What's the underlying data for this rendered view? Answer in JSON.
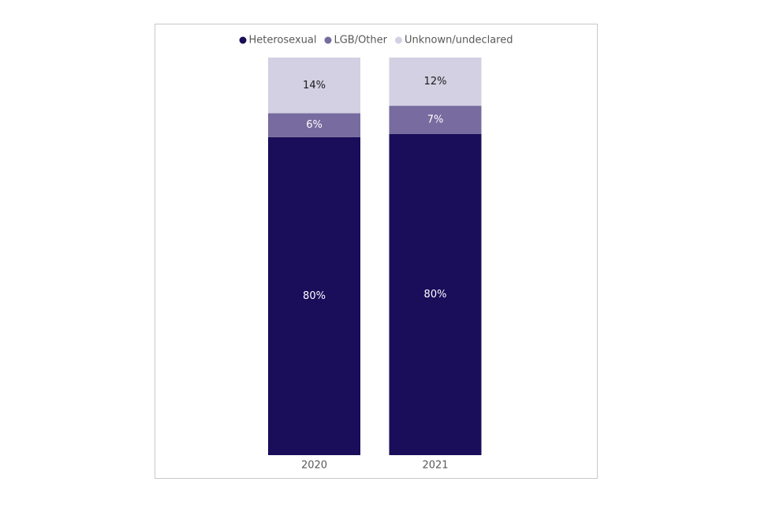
{
  "chart_data": {
    "type": "stacked_bar",
    "stacking": "percent",
    "categories": [
      "2020",
      "2021"
    ],
    "series": [
      {
        "name": "Heterosexual",
        "color": "#1a0d5a",
        "label_color": "#ffffff",
        "values": [
          80,
          80
        ],
        "value_labels": [
          "80%",
          "80%"
        ]
      },
      {
        "name": "LGB/Other",
        "color": "#776b9f",
        "label_color": "#ffffff",
        "values": [
          6,
          7
        ],
        "value_labels": [
          "6%",
          "7%"
        ]
      },
      {
        "name": "Unknown/undeclared",
        "color": "#d2d0e2",
        "label_color": "#1a1a1a",
        "values": [
          14,
          12
        ],
        "value_labels": [
          "14%",
          "12%"
        ]
      }
    ],
    "legend": "top"
  }
}
